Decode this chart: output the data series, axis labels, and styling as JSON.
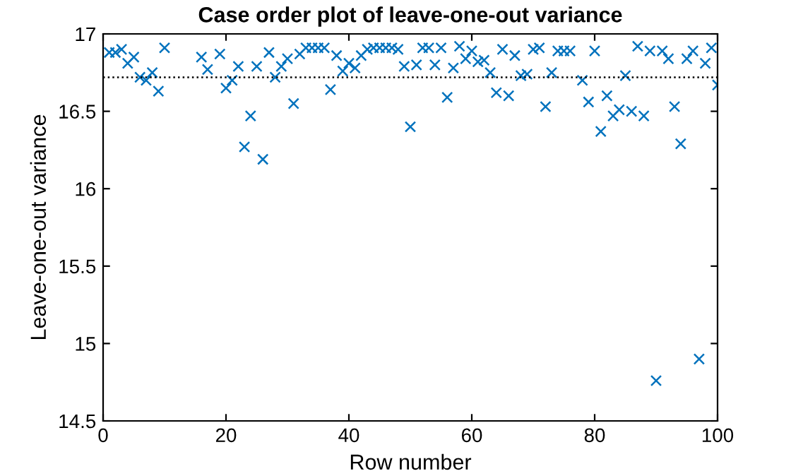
{
  "chart_data": {
    "type": "scatter",
    "title": "Case order plot of leave-one-out variance",
    "xlabel": "Row number",
    "ylabel": "Leave-one-out variance",
    "x": [
      1,
      2,
      3,
      4,
      5,
      6,
      7,
      8,
      9,
      10,
      16,
      17,
      19,
      20,
      21,
      22,
      23,
      24,
      25,
      26,
      27,
      28,
      29,
      30,
      31,
      32,
      33,
      34,
      35,
      36,
      37,
      38,
      39,
      40,
      41,
      42,
      43,
      44,
      45,
      46,
      47,
      48,
      49,
      50,
      51,
      52,
      53,
      54,
      55,
      56,
      57,
      58,
      59,
      60,
      61,
      62,
      63,
      64,
      65,
      66,
      67,
      68,
      69,
      70,
      71,
      72,
      73,
      74,
      75,
      76,
      78,
      79,
      80,
      81,
      82,
      83,
      84,
      85,
      86,
      87,
      88,
      89,
      90,
      91,
      92,
      93,
      94,
      95,
      96,
      97,
      98,
      99,
      100
    ],
    "series": [
      {
        "color": "#0072bd",
        "values": [
          16.88,
          16.88,
          16.9,
          16.81,
          16.85,
          16.72,
          16.7,
          16.75,
          16.63,
          16.91,
          16.85,
          16.77,
          16.87,
          16.65,
          16.7,
          16.79,
          16.27,
          16.47,
          16.79,
          16.19,
          16.88,
          16.72,
          16.79,
          16.84,
          16.55,
          16.87,
          16.91,
          16.91,
          16.91,
          16.91,
          16.64,
          16.86,
          16.76,
          16.81,
          16.78,
          16.86,
          16.9,
          16.91,
          16.91,
          16.91,
          16.91,
          16.9,
          16.79,
          16.4,
          16.8,
          16.91,
          16.91,
          16.8,
          16.91,
          16.59,
          16.78,
          16.92,
          16.84,
          16.89,
          16.82,
          16.83,
          16.75,
          16.62,
          16.9,
          16.6,
          16.86,
          16.73,
          16.74,
          16.9,
          16.91,
          16.53,
          16.75,
          16.89,
          16.89,
          16.89,
          16.7,
          16.56,
          16.89,
          16.37,
          16.6,
          16.47,
          16.51,
          16.73,
          16.5,
          16.92,
          16.47,
          16.89,
          14.76,
          16.89,
          16.84,
          16.53,
          16.29,
          16.84,
          16.89,
          14.9,
          16.81,
          16.91,
          16.67
        ]
      }
    ],
    "marker": "cross",
    "xlim": [
      0,
      100
    ],
    "xticks": [
      0,
      20,
      40,
      60,
      80,
      100
    ],
    "ylim": [
      14.5,
      17
    ],
    "yticks": [
      14.5,
      15,
      15.5,
      16,
      16.5,
      17
    ],
    "grid": false,
    "legend": false,
    "ref_lines": [
      {
        "axis": "y",
        "value": 16.72,
        "color": "#000000",
        "line_style": "dotted"
      }
    ]
  }
}
